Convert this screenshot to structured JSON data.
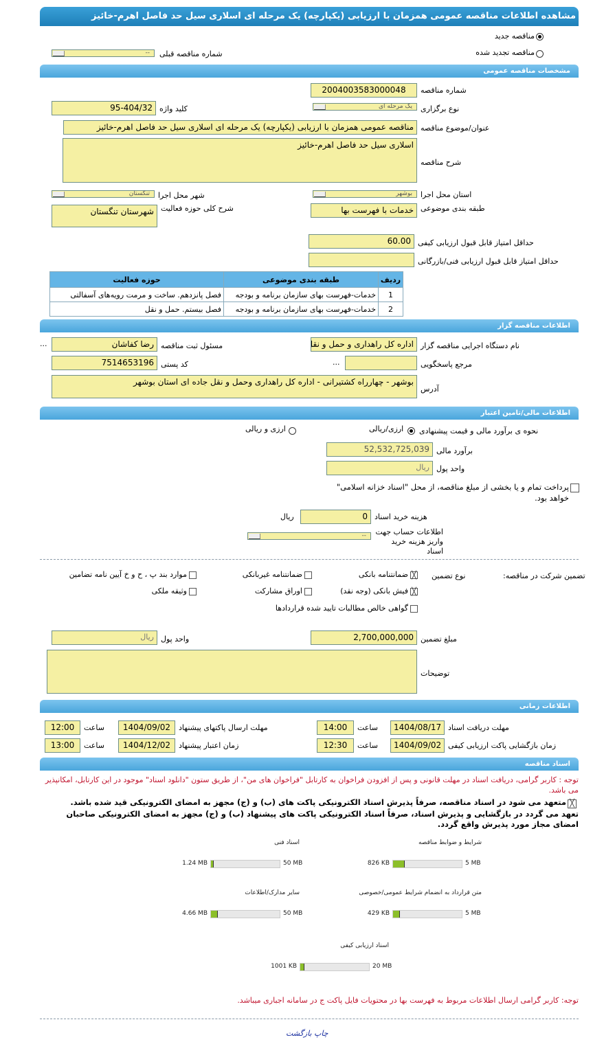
{
  "title": "مشاهده اطلاعات مناقصه عمومی همزمان با ارزیابی (یکپارچه) یک مرحله ای اسلاری سیل حد فاصل اهرم-خائیز",
  "tender_type": {
    "new": "مناقصه جدید",
    "renewed": "مناقصه تجدید شده",
    "selected": "new",
    "prev_label": "شماره مناقصه قبلی",
    "prev_value": "--"
  },
  "general": {
    "header": "مشخصات مناقصه عمومی",
    "number_label": "شماره مناقصه",
    "number": "2004003583000048",
    "holding_label": "نوع برگزاری",
    "holding": "یک مرحله ای",
    "keyword_label": "کلید واژه",
    "keyword": "95-404/32",
    "subject_label": "عنوان/موضوع مناقصه",
    "subject": "مناقصه عمومی همزمان با ارزیابی (یکپارچه) یک مرحله ای اسلاری سیل حد فاصل اهرم-خائیز",
    "desc_label": "شرح مناقصه",
    "desc": "اسلاری سیل حد فاصل اهرم-خائیز",
    "province_label": "استان محل اجرا",
    "province": "بوشهر",
    "city_label": "شهر محل اجرا",
    "city": "تنگستان",
    "category_label": "طبقه بندی موضوعی",
    "category": "خدمات با فهرست بها",
    "scope_label": "شرح کلی حوزه فعالیت",
    "scope": "شهرستان تنگستان",
    "min_quality_label": "حداقل امتیاز قابل قبول ارزیابی کیفی",
    "min_quality": "60.00",
    "min_tech_label": "حداقل امتیاز قابل قبول ارزیابی فنی/بازرگانی",
    "min_tech": "",
    "table": {
      "headers": [
        "ردیف",
        "طبقه بندی موضوعی",
        "حوزه فعالیت"
      ],
      "rows": [
        [
          "1",
          "خدمات-فهرست بهای سازمان برنامه و بودجه",
          "فصل پانزدهم. ساخت و مرمت رویه‌های آسفالتی"
        ],
        [
          "2",
          "خدمات-فهرست بهای سازمان برنامه و بودجه",
          "فصل بیستم. حمل و نقل"
        ]
      ]
    }
  },
  "organizer": {
    "header": "اطلاعات مناقصه گزار",
    "org_label": "نام دستگاه اجرایی مناقصه گزار",
    "org": "اداره کل راهداری و حمل و نقل",
    "org_more": "...",
    "registrar_label": "مسئول ثبت مناقصه",
    "registrar": "رضا کفاشان",
    "ref_label": "مرجع پاسخگویی",
    "ref": "",
    "ref_more": "...",
    "postal_label": "کد پستی",
    "postal": "7514653196",
    "address_label": "آدرس",
    "address": "بوشهر - چهارراه کشتیرانی - اداره کل راهداری وحمل و نقل جاده ای استان بوشهر"
  },
  "finance": {
    "header": "اطلاعات مالی/تامین اعتبار",
    "method_label": "نحوه ی برآورد مالی و قیمت پیشنهادی",
    "opt1": "ارزی/ریالی",
    "opt2": "ارزی و ریالی",
    "selected": "opt1",
    "estimate_label": "برآورد مالی",
    "estimate": "52,532,725,039",
    "currency_label": "واحد پول",
    "currency": "ریال",
    "treasury_text": "پرداخت تمام و یا بخشی از مبلغ مناقصه، از محل \"اسناد خزانه اسلامی\" خواهد بود.",
    "treasury_checked": false,
    "doc_cost_label": "هزینه خرید اسناد",
    "doc_cost": "0",
    "doc_cost_unit": "ریال",
    "account_label": "اطلاعات حساب جهت واریز هزینه خرید اسناد",
    "account": "--"
  },
  "guarantee": {
    "label": "تضمین شرکت در مناقصه:",
    "type_label": "نوع تضمین",
    "options": [
      {
        "label": "ضمانتنامه بانکی",
        "checked": true
      },
      {
        "label": "ضمانتنامه غیربانکی",
        "checked": false
      },
      {
        "label": "موارد بند پ ، ح و خ آیین نامه تضامین",
        "checked": false
      },
      {
        "label": "فیش بانکی (وجه نقد)",
        "checked": true
      },
      {
        "label": "اوراق مشارکت",
        "checked": false
      },
      {
        "label": "وثیقه ملکی",
        "checked": false
      },
      {
        "label": "گواهی خالص مطالبات تایید شده قراردادها",
        "checked": false
      }
    ],
    "amount_label": "مبلغ تضمین",
    "amount": "2,700,000,000",
    "currency_label": "واحد پول",
    "currency": "ریال",
    "notes_label": "توضیحات",
    "notes": ""
  },
  "timing": {
    "header": "اطلاعات زمانی",
    "time_label": "ساعت",
    "doc_receive_label": "مهلت دریافت اسناد",
    "doc_receive_date": "1404/08/17",
    "doc_receive_time": "14:00",
    "submit_label": "مهلت ارسال پاکتهای پیشنهاد",
    "submit_date": "1404/09/02",
    "submit_time": "12:00",
    "open_label": "زمان بازگشایی پاکت ارزیابی کیفی",
    "open_date": "1404/09/02",
    "open_time": "12:30",
    "validity_label": "زمان اعتبار پیشنهاد",
    "validity_date": "1404/12/02",
    "validity_time": "13:00"
  },
  "documents": {
    "header": "اسناد مناقصه",
    "note": "توجه : کاربر گرامی، دریافت اسناد در مهلت قانونی و پس از افزودن فراخوان به کارتابل \"فراخوان های من\"، از طریق ستون \"دانلود اسناد\" موجود در این کارتابل، امکانپذیر می باشد.",
    "commit1": "متعهد می شود در اسناد مناقصه، صرفاً پذیرش اسناد الکترونیکی پاکت های (ب) و (ج) مجهز به امضای الکترونیکی قید شده باشد.",
    "commit2": "تعهد می گردد در بازگشایی و پذیرش اسناد، صرفاً اسناد الکترونیکی پاکت های پیشنهاد (ب) و (ج) مجهز به امضای الکترونیکی صاحبان امضای مجاز مورد پذیرش واقع گردد.",
    "files": [
      {
        "label": "شرایط و ضوابط مناقصه",
        "size": "826 KB",
        "max": "5 MB",
        "fill": 0.16
      },
      {
        "label": "اسناد فنی",
        "size": "1.24 MB",
        "max": "50 MB",
        "fill": 0.025
      },
      {
        "label": "متن قرارداد به انضمام شرایط عمومی/خصوصی",
        "size": "429 KB",
        "max": "5 MB",
        "fill": 0.084
      },
      {
        "label": "سایر مدارک/اطلاعات",
        "size": "4.66 MB",
        "max": "50 MB",
        "fill": 0.093
      },
      {
        "label": "اسناد ارزیابی کیفی",
        "size": "1001 KB",
        "max": "20 MB",
        "fill": 0.049
      }
    ],
    "footer_note": "توجه: کاربر گرامی ارسال اطلاعات مربوط به فهرست بها در محتویات فایل پاکت ج در سامانه اجباری میباشد."
  },
  "footer": {
    "print": "چاپ",
    "back": "بازگشت"
  }
}
